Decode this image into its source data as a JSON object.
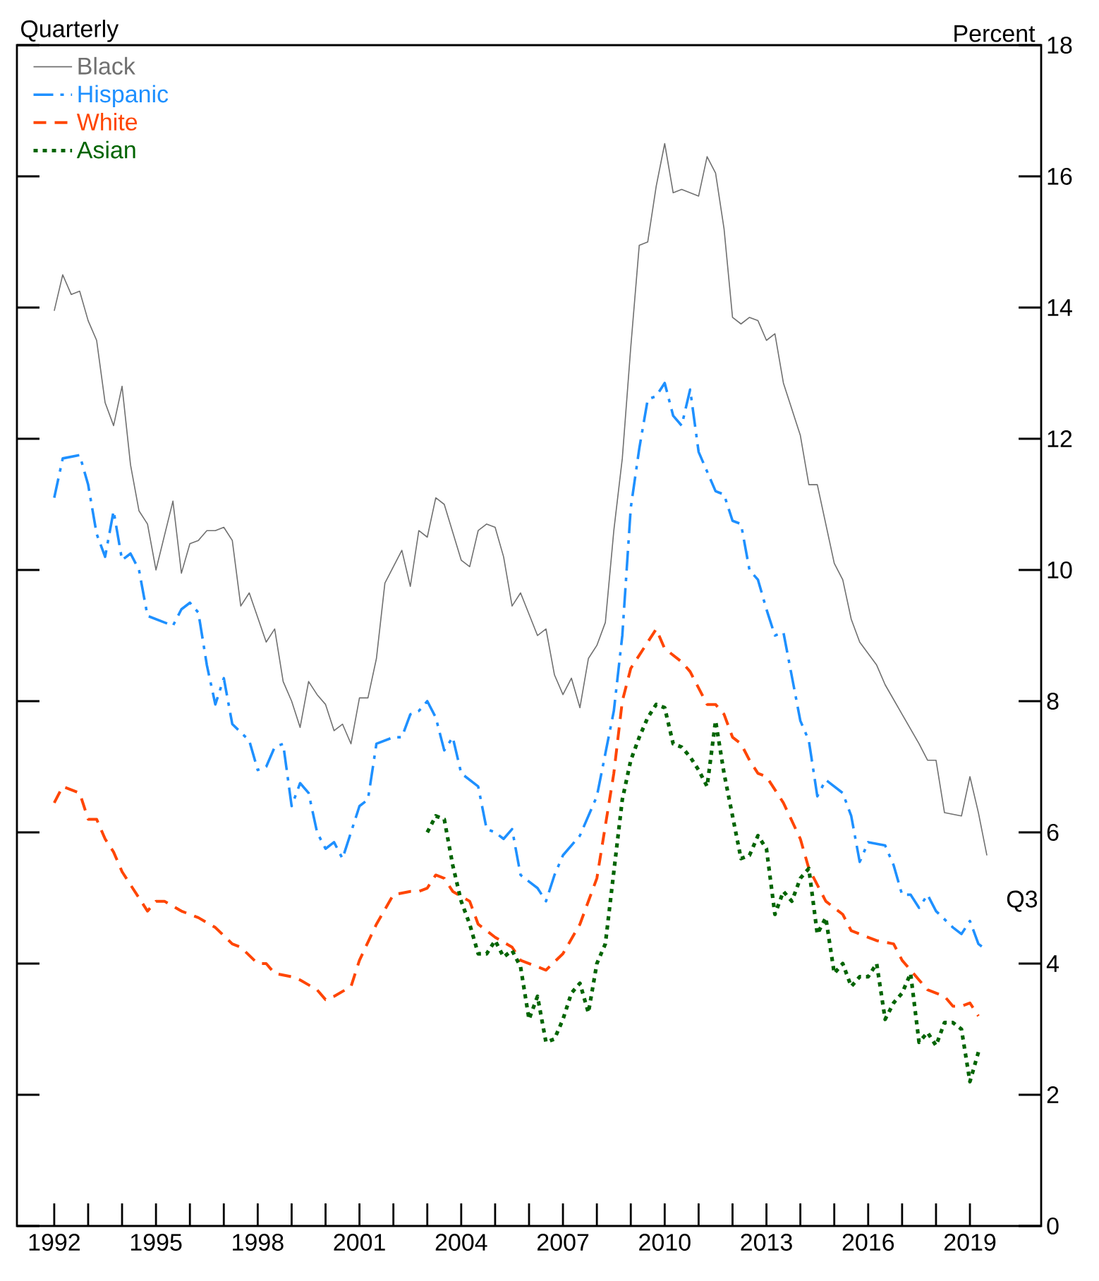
{
  "chart_data": {
    "type": "line",
    "ylabel": "Percent",
    "annotations": [
      "Quarterly",
      "Q3"
    ],
    "xlim": [
      1990.9,
      2021.1
    ],
    "ylim": [
      0,
      18
    ],
    "yticks": [
      0,
      2,
      4,
      6,
      8,
      10,
      12,
      14,
      16,
      18
    ],
    "xticks": [
      1992,
      {
        "value": 1993,
        "label": null
      },
      {
        "value": 1994,
        "label": null
      },
      1995,
      {
        "value": 1996,
        "label": null
      },
      {
        "value": 1997,
        "label": null
      },
      1998,
      {
        "value": 1999,
        "label": null
      },
      {
        "value": 2000,
        "label": null
      },
      2001,
      {
        "value": 2002,
        "label": null
      },
      {
        "value": 2003,
        "label": null
      },
      2004,
      {
        "value": 2005,
        "label": null
      },
      {
        "value": 2006,
        "label": null
      },
      2007,
      {
        "value": 2008,
        "label": null
      },
      {
        "value": 2009,
        "label": null
      },
      2010,
      {
        "value": 2011,
        "label": null
      },
      {
        "value": 2012,
        "label": null
      },
      2013,
      {
        "value": 2014,
        "label": null
      },
      {
        "value": 2015,
        "label": null
      },
      2016,
      {
        "value": 2017,
        "label": null
      },
      {
        "value": 2018,
        "label": null
      },
      2019
    ],
    "legend": "top left",
    "grid": false,
    "series": [
      {
        "name": "Black",
        "color": "#707070",
        "line_style": "solid",
        "x": [
          1992,
          1992.25,
          1992.5,
          1992.75,
          1993,
          1993.25,
          1993.5,
          1993.75,
          1994,
          1994.25,
          1994.5,
          1994.75,
          1995,
          1995.5,
          1995.75,
          1996,
          1996.25,
          1996.5,
          1996.75,
          1997,
          1997.25,
          1997.5,
          1997.75,
          1998.25,
          1998.5,
          1998.75,
          1999,
          1999.25,
          1999.5,
          1999.75,
          2000,
          2000.25,
          2000.5,
          2000.75,
          2001,
          2001.25,
          2001.5,
          2001.75,
          2002.25,
          2002.5,
          2002.75,
          2003,
          2003.25,
          2003.5,
          2004,
          2004.25,
          2004.5,
          2004.75,
          2005,
          2005.25,
          2005.5,
          2005.75,
          2006.25,
          2006.5,
          2006.75,
          2007,
          2007.25,
          2007.5,
          2007.75,
          2008,
          2008.25,
          2008.5,
          2008.75,
          2009,
          2009.25,
          2009.5,
          2009.75,
          2010,
          2010.25,
          2010.5,
          2011,
          2011.25,
          2011.5,
          2011.75,
          2012,
          2012.25,
          2012.5,
          2012.75,
          2013,
          2013.25,
          2013.5,
          2014,
          2014.25,
          2014.5,
          2015,
          2015.25,
          2015.5,
          2015.75,
          2016.25,
          2016.5,
          2017,
          2017.5,
          2017.75,
          2018,
          2018.25,
          2018.75,
          2019,
          2019.25,
          2019.5
        ],
        "values": [
          13.95,
          14.5,
          14.2,
          14.25,
          13.8,
          13.5,
          12.55,
          12.2,
          12.8,
          11.6,
          10.9,
          10.7,
          10.0,
          11.05,
          9.95,
          10.4,
          10.45,
          10.6,
          10.6,
          10.65,
          10.45,
          9.45,
          9.65,
          8.9,
          9.1,
          8.3,
          8.0,
          7.6,
          8.3,
          8.1,
          7.95,
          7.55,
          7.65,
          7.35,
          8.05,
          8.05,
          8.65,
          9.8,
          10.3,
          9.75,
          10.6,
          10.5,
          11.1,
          11.0,
          10.15,
          10.05,
          10.6,
          10.7,
          10.65,
          10.2,
          9.45,
          9.65,
          9.0,
          9.1,
          8.4,
          8.1,
          8.35,
          7.9,
          8.65,
          8.85,
          9.2,
          10.6,
          11.7,
          13.4,
          14.95,
          15.0,
          15.85,
          16.5,
          15.75,
          15.8,
          15.7,
          16.3,
          16.05,
          15.2,
          13.85,
          13.75,
          13.85,
          13.8,
          13.5,
          13.6,
          12.85,
          12.05,
          11.3,
          11.3,
          10.1,
          9.85,
          9.25,
          8.9,
          8.55,
          8.25,
          7.8,
          7.35,
          7.1,
          7.1,
          6.3,
          6.25,
          6.85,
          6.3,
          5.65
        ]
      },
      {
        "name": "Hispanic",
        "color": "#1e90ff",
        "line_style": "dashdot",
        "x": [
          1992,
          1992.25,
          1992.75,
          1993,
          1993.25,
          1993.5,
          1993.75,
          1994,
          1994.25,
          1994.5,
          1994.75,
          1995.5,
          1995.75,
          1996,
          1996.25,
          1996.5,
          1996.75,
          1997,
          1997.25,
          1997.75,
          1998,
          1998.25,
          1998.5,
          1998.75,
          1999,
          1999.25,
          1999.5,
          1999.75,
          2000,
          2000.25,
          2000.5,
          2000.75,
          2001,
          2001.25,
          2001.5,
          2002,
          2002.25,
          2002.5,
          2002.75,
          2003,
          2003.25,
          2003.5,
          2003.75,
          2004,
          2004.5,
          2004.75,
          2005,
          2005.25,
          2005.5,
          2005.75,
          2006.25,
          2006.5,
          2006.75,
          2007,
          2007.5,
          2008,
          2008.5,
          2008.75,
          2009,
          2009.25,
          2009.5,
          2009.75,
          2010,
          2010.25,
          2010.5,
          2010.75,
          2011,
          2011.5,
          2011.75,
          2012,
          2012.25,
          2012.5,
          2012.75,
          2013,
          2013.25,
          2013.5,
          2014,
          2014.25,
          2014.5,
          2014.75,
          2015.25,
          2015.5,
          2015.75,
          2016,
          2016.5,
          2016.75,
          2017,
          2017.25,
          2017.5,
          2017.75,
          2018,
          2018.5,
          2018.75,
          2019,
          2019.25,
          2019.5
        ],
        "values": [
          11.1,
          11.7,
          11.75,
          11.3,
          10.55,
          10.2,
          10.9,
          10.15,
          10.25,
          10.0,
          9.3,
          9.15,
          9.4,
          9.5,
          9.35,
          8.55,
          7.95,
          8.35,
          7.65,
          7.4,
          6.95,
          7.0,
          7.3,
          7.35,
          6.4,
          6.75,
          6.6,
          6.0,
          5.75,
          5.85,
          5.6,
          6.0,
          6.4,
          6.5,
          7.35,
          7.45,
          7.45,
          7.8,
          7.85,
          8.0,
          7.75,
          7.25,
          7.45,
          6.9,
          6.7,
          6.05,
          6.0,
          5.9,
          6.05,
          5.35,
          5.15,
          4.95,
          5.35,
          5.65,
          5.95,
          6.55,
          7.85,
          9.0,
          10.95,
          11.85,
          12.6,
          12.65,
          12.85,
          12.35,
          12.2,
          12.75,
          11.8,
          11.2,
          11.15,
          10.75,
          10.7,
          10.0,
          9.85,
          9.4,
          9.0,
          9.05,
          7.7,
          7.4,
          6.55,
          6.8,
          6.6,
          6.25,
          5.55,
          5.85,
          5.8,
          5.5,
          5.05,
          5.05,
          4.85,
          5.05,
          4.8,
          4.55,
          4.45,
          4.65,
          4.3,
          4.2
        ]
      },
      {
        "name": "White",
        "color": "#ff4500",
        "line_style": "dashed",
        "x": [
          1992,
          1992.25,
          1992.5,
          1992.75,
          1993,
          1993.25,
          1993.5,
          1993.75,
          1994,
          1994.5,
          1994.75,
          1995,
          1995.25,
          1995.75,
          1996.25,
          1996.75,
          1997.25,
          1997.5,
          1998,
          1998.25,
          1998.5,
          1999,
          1999.25,
          1999.75,
          2000,
          2000.25,
          2000.75,
          2001,
          2001.5,
          2002,
          2002.5,
          2002.75,
          2003,
          2003.25,
          2003.5,
          2003.75,
          2004.25,
          2004.5,
          2005,
          2005.5,
          2005.75,
          2006.25,
          2006.5,
          2007,
          2007.5,
          2008,
          2008.5,
          2008.75,
          2009,
          2009.5,
          2009.75,
          2010,
          2010.5,
          2010.75,
          2011.25,
          2011.5,
          2011.75,
          2012,
          2012.25,
          2012.5,
          2012.75,
          2013,
          2013.5,
          2014,
          2014.25,
          2014.5,
          2014.75,
          2015.25,
          2015.5,
          2015.75,
          2016.25,
          2016.75,
          2017,
          2017.5,
          2017.75,
          2018.25,
          2018.5,
          2018.75,
          2019,
          2019.25
        ],
        "values": [
          6.45,
          6.7,
          6.65,
          6.6,
          6.2,
          6.2,
          5.9,
          5.7,
          5.4,
          5.0,
          4.8,
          4.95,
          4.95,
          4.8,
          4.7,
          4.55,
          4.3,
          4.25,
          4.0,
          4.0,
          3.85,
          3.8,
          3.75,
          3.6,
          3.45,
          3.5,
          3.65,
          4.05,
          4.6,
          5.05,
          5.1,
          5.1,
          5.15,
          5.35,
          5.3,
          5.1,
          4.95,
          4.6,
          4.4,
          4.25,
          4.05,
          3.95,
          3.9,
          4.15,
          4.6,
          5.3,
          6.9,
          8.0,
          8.5,
          8.9,
          9.1,
          8.8,
          8.6,
          8.45,
          7.95,
          7.95,
          7.8,
          7.45,
          7.35,
          7.1,
          6.9,
          6.85,
          6.45,
          5.9,
          5.45,
          5.2,
          4.95,
          4.75,
          4.5,
          4.45,
          4.35,
          4.3,
          4.05,
          3.75,
          3.6,
          3.5,
          3.35,
          3.35,
          3.4,
          3.2
        ]
      },
      {
        "name": "Asian",
        "color": "#006400",
        "line_style": "dotted",
        "x": [
          2003,
          2003.25,
          2003.5,
          2003.75,
          2004,
          2004.25,
          2004.5,
          2004.75,
          2005,
          2005.25,
          2005.5,
          2005.75,
          2006,
          2006.25,
          2006.5,
          2006.75,
          2007,
          2007.25,
          2007.5,
          2007.75,
          2008,
          2008.25,
          2008.5,
          2008.75,
          2009,
          2009.25,
          2009.5,
          2009.75,
          2010,
          2010.25,
          2010.5,
          2010.75,
          2011,
          2011.25,
          2011.5,
          2011.75,
          2012,
          2012.25,
          2012.5,
          2012.75,
          2013,
          2013.25,
          2013.5,
          2013.75,
          2014,
          2014.25,
          2014.5,
          2014.75,
          2015,
          2015.25,
          2015.5,
          2015.75,
          2016,
          2016.25,
          2016.5,
          2016.75,
          2017,
          2017.25,
          2017.5,
          2017.75,
          2018,
          2018.25,
          2018.5,
          2018.75,
          2019,
          2019.25
        ],
        "values": [
          6.0,
          6.25,
          6.2,
          5.5,
          4.95,
          4.6,
          4.15,
          4.15,
          4.35,
          4.1,
          4.2,
          3.95,
          3.15,
          3.5,
          2.8,
          2.85,
          3.15,
          3.55,
          3.7,
          3.25,
          4.0,
          4.3,
          5.4,
          6.5,
          7.1,
          7.45,
          7.75,
          7.95,
          7.9,
          7.35,
          7.3,
          7.15,
          6.95,
          6.7,
          7.7,
          6.9,
          6.25,
          5.6,
          5.65,
          5.95,
          5.75,
          4.75,
          5.1,
          4.95,
          5.3,
          5.45,
          4.45,
          4.7,
          3.85,
          4.0,
          3.65,
          3.8,
          3.8,
          4.0,
          3.15,
          3.4,
          3.55,
          3.85,
          2.8,
          2.95,
          2.75,
          3.1,
          3.1,
          3.0,
          2.2,
          2.65
        ]
      }
    ]
  }
}
